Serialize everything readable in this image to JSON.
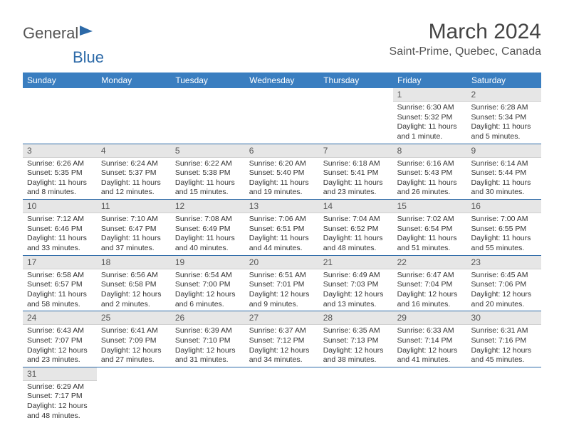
{
  "logo": {
    "text1": "General",
    "text2": "Blue"
  },
  "title": "March 2024",
  "location": "Saint-Prime, Quebec, Canada",
  "colors": {
    "header_bg": "#3a7ec0",
    "header_text": "#ffffff",
    "daynum_bg": "#e6e6e6",
    "border": "#2d6aa8",
    "logo_blue": "#2d6aa8"
  },
  "weekdays": [
    "Sunday",
    "Monday",
    "Tuesday",
    "Wednesday",
    "Thursday",
    "Friday",
    "Saturday"
  ],
  "weeks": [
    [
      null,
      null,
      null,
      null,
      null,
      {
        "n": "1",
        "sr": "6:30 AM",
        "ss": "5:32 PM",
        "dl": "11 hours and 1 minute."
      },
      {
        "n": "2",
        "sr": "6:28 AM",
        "ss": "5:34 PM",
        "dl": "11 hours and 5 minutes."
      }
    ],
    [
      {
        "n": "3",
        "sr": "6:26 AM",
        "ss": "5:35 PM",
        "dl": "11 hours and 8 minutes."
      },
      {
        "n": "4",
        "sr": "6:24 AM",
        "ss": "5:37 PM",
        "dl": "11 hours and 12 minutes."
      },
      {
        "n": "5",
        "sr": "6:22 AM",
        "ss": "5:38 PM",
        "dl": "11 hours and 15 minutes."
      },
      {
        "n": "6",
        "sr": "6:20 AM",
        "ss": "5:40 PM",
        "dl": "11 hours and 19 minutes."
      },
      {
        "n": "7",
        "sr": "6:18 AM",
        "ss": "5:41 PM",
        "dl": "11 hours and 23 minutes."
      },
      {
        "n": "8",
        "sr": "6:16 AM",
        "ss": "5:43 PM",
        "dl": "11 hours and 26 minutes."
      },
      {
        "n": "9",
        "sr": "6:14 AM",
        "ss": "5:44 PM",
        "dl": "11 hours and 30 minutes."
      }
    ],
    [
      {
        "n": "10",
        "sr": "7:12 AM",
        "ss": "6:46 PM",
        "dl": "11 hours and 33 minutes."
      },
      {
        "n": "11",
        "sr": "7:10 AM",
        "ss": "6:47 PM",
        "dl": "11 hours and 37 minutes."
      },
      {
        "n": "12",
        "sr": "7:08 AM",
        "ss": "6:49 PM",
        "dl": "11 hours and 40 minutes."
      },
      {
        "n": "13",
        "sr": "7:06 AM",
        "ss": "6:51 PM",
        "dl": "11 hours and 44 minutes."
      },
      {
        "n": "14",
        "sr": "7:04 AM",
        "ss": "6:52 PM",
        "dl": "11 hours and 48 minutes."
      },
      {
        "n": "15",
        "sr": "7:02 AM",
        "ss": "6:54 PM",
        "dl": "11 hours and 51 minutes."
      },
      {
        "n": "16",
        "sr": "7:00 AM",
        "ss": "6:55 PM",
        "dl": "11 hours and 55 minutes."
      }
    ],
    [
      {
        "n": "17",
        "sr": "6:58 AM",
        "ss": "6:57 PM",
        "dl": "11 hours and 58 minutes."
      },
      {
        "n": "18",
        "sr": "6:56 AM",
        "ss": "6:58 PM",
        "dl": "12 hours and 2 minutes."
      },
      {
        "n": "19",
        "sr": "6:54 AM",
        "ss": "7:00 PM",
        "dl": "12 hours and 6 minutes."
      },
      {
        "n": "20",
        "sr": "6:51 AM",
        "ss": "7:01 PM",
        "dl": "12 hours and 9 minutes."
      },
      {
        "n": "21",
        "sr": "6:49 AM",
        "ss": "7:03 PM",
        "dl": "12 hours and 13 minutes."
      },
      {
        "n": "22",
        "sr": "6:47 AM",
        "ss": "7:04 PM",
        "dl": "12 hours and 16 minutes."
      },
      {
        "n": "23",
        "sr": "6:45 AM",
        "ss": "7:06 PM",
        "dl": "12 hours and 20 minutes."
      }
    ],
    [
      {
        "n": "24",
        "sr": "6:43 AM",
        "ss": "7:07 PM",
        "dl": "12 hours and 23 minutes."
      },
      {
        "n": "25",
        "sr": "6:41 AM",
        "ss": "7:09 PM",
        "dl": "12 hours and 27 minutes."
      },
      {
        "n": "26",
        "sr": "6:39 AM",
        "ss": "7:10 PM",
        "dl": "12 hours and 31 minutes."
      },
      {
        "n": "27",
        "sr": "6:37 AM",
        "ss": "7:12 PM",
        "dl": "12 hours and 34 minutes."
      },
      {
        "n": "28",
        "sr": "6:35 AM",
        "ss": "7:13 PM",
        "dl": "12 hours and 38 minutes."
      },
      {
        "n": "29",
        "sr": "6:33 AM",
        "ss": "7:14 PM",
        "dl": "12 hours and 41 minutes."
      },
      {
        "n": "30",
        "sr": "6:31 AM",
        "ss": "7:16 PM",
        "dl": "12 hours and 45 minutes."
      }
    ],
    [
      {
        "n": "31",
        "sr": "6:29 AM",
        "ss": "7:17 PM",
        "dl": "12 hours and 48 minutes."
      },
      null,
      null,
      null,
      null,
      null,
      null
    ]
  ],
  "labels": {
    "sunrise": "Sunrise: ",
    "sunset": "Sunset: ",
    "daylight": "Daylight: "
  }
}
